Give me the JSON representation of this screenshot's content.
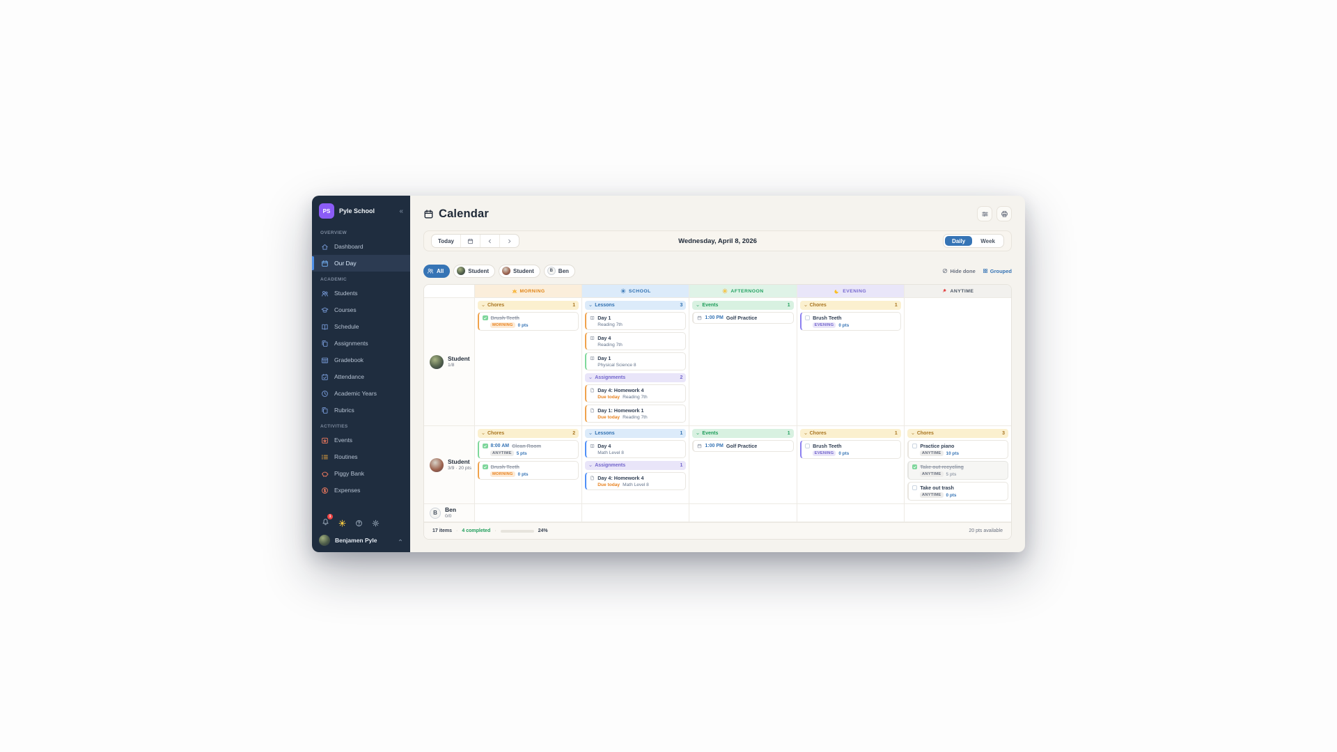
{
  "colors": {
    "accent_blue": "#3674b5",
    "sidebar_bg": "#1f2d3f",
    "logo_purple": "#8b5cf6",
    "green": "#1f9d5b",
    "orange": "#e8821e",
    "purple": "#7265cc",
    "red": "#ef4444"
  },
  "sidebar": {
    "logo_initials": "PS",
    "school_name": "Pyle School",
    "collapse_icon": "chevrons-left",
    "sections": [
      {
        "label": "OVERVIEW",
        "items": [
          {
            "label": "Dashboard",
            "icon": "home",
            "active": false
          },
          {
            "label": "Our Day",
            "icon": "calendar",
            "active": true
          }
        ]
      },
      {
        "label": "ACADEMIC",
        "items": [
          {
            "label": "Students",
            "icon": "users"
          },
          {
            "label": "Courses",
            "icon": "grad-cap"
          },
          {
            "label": "Schedule",
            "icon": "book"
          },
          {
            "label": "Assignments",
            "icon": "copy"
          },
          {
            "label": "Gradebook",
            "icon": "table"
          },
          {
            "label": "Attendance",
            "icon": "calendar-check"
          },
          {
            "label": "Academic Years",
            "icon": "clock"
          },
          {
            "label": "Rubrics",
            "icon": "copy"
          }
        ]
      },
      {
        "label": "ACTIVITIES",
        "items": [
          {
            "label": "Events",
            "icon": "event",
            "tint": "warm"
          },
          {
            "label": "Routines",
            "icon": "list",
            "tint": "orange"
          },
          {
            "label": "Piggy Bank",
            "icon": "piggy",
            "tint": "warm"
          },
          {
            "label": "Expenses",
            "icon": "dollar",
            "tint": "warm"
          }
        ]
      }
    ],
    "footer_icons": [
      "bell",
      "sun",
      "help",
      "gear"
    ],
    "notification_count": "1",
    "user_name": "Benjamen Pyle"
  },
  "header": {
    "title": "Calendar",
    "icon": "calendar",
    "action_icons": [
      "sliders",
      "printer"
    ]
  },
  "toolbar": {
    "today_label": "Today",
    "date_label": "Wednesday, April 8, 2026",
    "view_options": [
      "Daily",
      "Week"
    ],
    "active_view": "Daily"
  },
  "filters": {
    "chips": [
      {
        "label": "All",
        "active": true,
        "avatar": "users-icon"
      },
      {
        "label": "Student",
        "avatar": "photo1"
      },
      {
        "label": "Student",
        "avatar": "photo2"
      },
      {
        "label": "Ben",
        "avatar": "initial",
        "initial": "B"
      }
    ],
    "hide_done_label": "Hide done",
    "grouped_label": "Grouped"
  },
  "grid": {
    "columns": [
      {
        "label": "MORNING",
        "icon": "sunrise",
        "color": "#e08416",
        "bg": "#fbeedb"
      },
      {
        "label": "SCHOOL",
        "icon": "sun",
        "color": "#2e6fb0",
        "bg": "#dcebfa"
      },
      {
        "label": "AFTERNOON",
        "icon": "sun-low",
        "color": "#22a061",
        "bg": "#dff3e7"
      },
      {
        "label": "EVENING",
        "icon": "moon",
        "color": "#7668cf",
        "bg": "#e9e6f9"
      },
      {
        "label": "ANYTIME",
        "icon": "pin",
        "color": "#4b5563",
        "bg": "#f2f1ee"
      }
    ],
    "rows": [
      {
        "student": {
          "name": "Student",
          "sub": "1/8",
          "avatar": "photo1"
        },
        "min_height": 162,
        "cells": {
          "morning": [
            {
              "name": "Chores",
              "tint": "chores",
              "count": "1",
              "items": [
                {
                  "type": "chore",
                  "checked": true,
                  "done": true,
                  "title": "Brush Teeth",
                  "badge": "MORNING",
                  "badge_tint": "morning",
                  "pts": "0 pts",
                  "accent": "orange"
                }
              ]
            }
          ],
          "school": [
            {
              "name": "Lessons",
              "tint": "lessons",
              "count": "3",
              "items": [
                {
                  "type": "lesson",
                  "title": "Day 1",
                  "sub": "Reading 7th",
                  "accent": "orange"
                },
                {
                  "type": "lesson",
                  "title": "Day 4",
                  "sub": "Reading 7th",
                  "accent": "orange"
                },
                {
                  "type": "lesson",
                  "title": "Day 1",
                  "sub": "Physical Science 8",
                  "accent": "green"
                }
              ]
            },
            {
              "name": "Assignments",
              "tint": "assignments",
              "count": "2",
              "items": [
                {
                  "type": "assignment",
                  "title": "Day 4: Homework 4",
                  "due": "Due today",
                  "sub": "Reading 7th",
                  "accent": "orange"
                },
                {
                  "type": "assignment",
                  "title": "Day 1: Homework 1",
                  "due": "Due today",
                  "sub": "Reading 7th",
                  "accent": "orange"
                }
              ]
            }
          ],
          "afternoon": [
            {
              "name": "Events",
              "tint": "events",
              "count": "1",
              "items": [
                {
                  "type": "event",
                  "time": "1:00 PM",
                  "title": "Golf Practice"
                }
              ]
            }
          ],
          "evening": [
            {
              "name": "Chores",
              "tint": "chores",
              "count": "1",
              "items": [
                {
                  "type": "chore",
                  "checked": false,
                  "title": "Brush Teeth",
                  "badge": "EVENING",
                  "badge_tint": "evening",
                  "pts": "0 pts",
                  "accent": "purple"
                }
              ]
            }
          ],
          "anytime": []
        }
      },
      {
        "student": {
          "name": "Student",
          "sub": "3/9 · 20 pts",
          "avatar": "photo2"
        },
        "min_height": 104,
        "cells": {
          "morning": [
            {
              "name": "Chores",
              "tint": "chores",
              "count": "2",
              "items": [
                {
                  "type": "chore",
                  "checked": true,
                  "done": true,
                  "time": "8:00 AM",
                  "title": "Clean Room",
                  "badge": "ANYTIME",
                  "badge_tint": "anytime",
                  "pts": "5 pts",
                  "accent": "green"
                },
                {
                  "type": "chore",
                  "checked": true,
                  "done": true,
                  "title": "Brush Teeth",
                  "badge": "MORNING",
                  "badge_tint": "morning",
                  "pts": "0 pts",
                  "accent": "orange"
                }
              ]
            }
          ],
          "school": [
            {
              "name": "Lessons",
              "tint": "lessons",
              "count": "1",
              "items": [
                {
                  "type": "lesson",
                  "title": "Day 4",
                  "sub": "Math Level 8",
                  "accent": "blue"
                }
              ]
            },
            {
              "name": "Assignments",
              "tint": "assignments",
              "count": "1",
              "items": [
                {
                  "type": "assignment",
                  "title": "Day 4: Homework 4",
                  "due": "Due today",
                  "sub": "Math Level 8",
                  "accent": "blue"
                }
              ]
            }
          ],
          "afternoon": [
            {
              "name": "Events",
              "tint": "events",
              "count": "1",
              "items": [
                {
                  "type": "event",
                  "time": "1:00 PM",
                  "title": "Golf Practice"
                }
              ]
            }
          ],
          "evening": [
            {
              "name": "Chores",
              "tint": "chores",
              "count": "1",
              "items": [
                {
                  "type": "chore",
                  "checked": false,
                  "title": "Brush Teeth",
                  "badge": "EVENING",
                  "badge_tint": "evening",
                  "pts": "0 pts",
                  "accent": "purple"
                }
              ]
            }
          ],
          "anytime": [
            {
              "name": "Chores",
              "tint": "chores",
              "count": "3",
              "items": [
                {
                  "type": "chore",
                  "checked": false,
                  "title": "Practice piano",
                  "badge": "ANYTIME",
                  "badge_tint": "anytime",
                  "pts": "10 pts"
                },
                {
                  "type": "chore",
                  "checked": true,
                  "done": true,
                  "faded": true,
                  "title": "Take out recycling",
                  "badge": "ANYTIME",
                  "badge_tint": "anytime",
                  "pts": "5 pts"
                },
                {
                  "type": "chore",
                  "checked": false,
                  "title": "Take out trash",
                  "badge": "ANYTIME",
                  "badge_tint": "anytime",
                  "pts": "0 pts"
                }
              ]
            }
          ]
        }
      },
      {
        "student": {
          "name": "Ben",
          "sub": "0/0",
          "avatar": "initial",
          "initial": "B"
        },
        "min_height": 26,
        "cells": {
          "morning": [],
          "school": [],
          "afternoon": [],
          "evening": [],
          "anytime": []
        }
      }
    ],
    "footer": {
      "items_label": "17 items",
      "completed_label": "4 completed",
      "percent_label": "24%",
      "progress": 24,
      "points_label": "20 pts available"
    }
  }
}
